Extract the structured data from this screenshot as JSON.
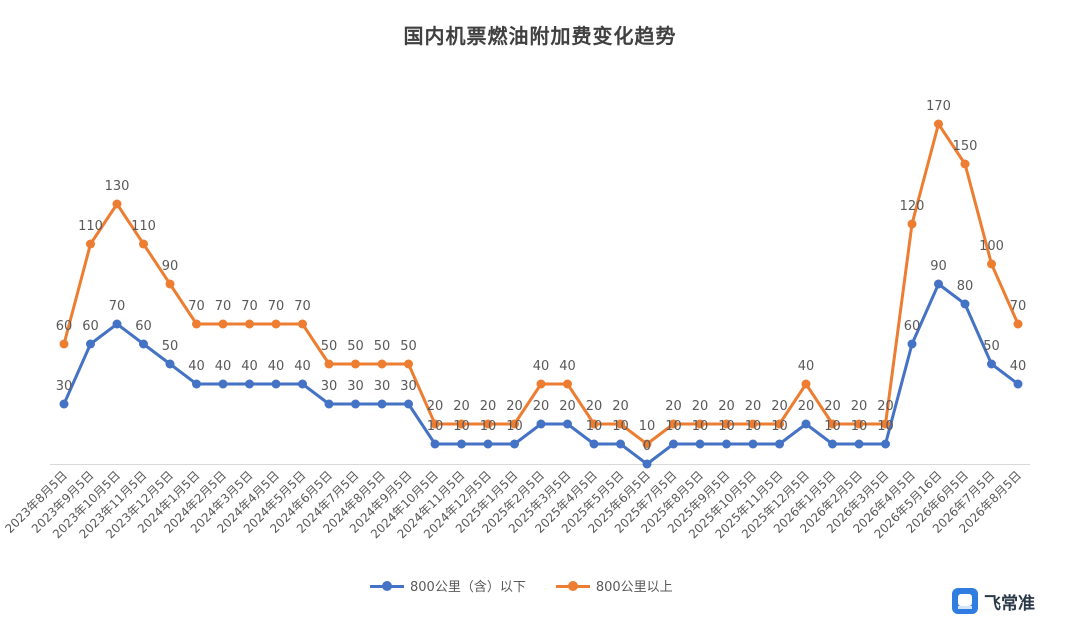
{
  "chart_data": {
    "type": "line",
    "title": "国内机票燃油附加费变化趋势",
    "categories": [
      "2023年8月5日",
      "2023年9月5日",
      "2023年10月5日",
      "2023年11月5日",
      "2023年12月5日",
      "2024年1月5日",
      "2024年2月5日",
      "2024年3月5日",
      "2024年4月5日",
      "2024年5月5日",
      "2024年6月5日",
      "2024年7月5日",
      "2024年8月5日",
      "2024年9月5日",
      "2024年10月5日",
      "2024年11月5日",
      "2024年12月5日",
      "2025年1月5日",
      "2025年2月5日",
      "2025年3月5日",
      "2025年4月5日",
      "2025年5月5日",
      "2025年6月5日",
      "2025年7月5日",
      "2025年8月5日",
      "2025年9月5日",
      "2025年10月5日",
      "2025年11月5日",
      "2025年12月5日",
      "2026年1月5日",
      "2026年2月5日",
      "2026年3月5日",
      "2026年4月5日",
      "2026年5月16日",
      "2026年6月5日",
      "2026年7月5日",
      "2026年8月5日"
    ],
    "series": [
      {
        "name": "800公里（含）以下",
        "color": "#4472c4",
        "values": [
          30,
          60,
          70,
          60,
          50,
          40,
          40,
          40,
          40,
          40,
          30,
          30,
          30,
          30,
          10,
          10,
          10,
          10,
          20,
          20,
          10,
          10,
          0,
          10,
          10,
          10,
          10,
          10,
          20,
          10,
          10,
          10,
          60,
          90,
          80,
          50,
          40
        ]
      },
      {
        "name": "800公里以上",
        "color": "#ed7d31",
        "values": [
          60,
          110,
          130,
          110,
          90,
          70,
          70,
          70,
          70,
          70,
          50,
          50,
          50,
          50,
          20,
          20,
          20,
          20,
          40,
          40,
          20,
          20,
          10,
          20,
          20,
          20,
          20,
          20,
          40,
          20,
          20,
          20,
          120,
          170,
          150,
          100,
          70
        ]
      }
    ],
    "ylim": [
      0,
      170
    ],
    "grid": false,
    "legend": "bottom"
  },
  "brand": {
    "name": "飞常准",
    "icon": "plane-logo-icon"
  }
}
